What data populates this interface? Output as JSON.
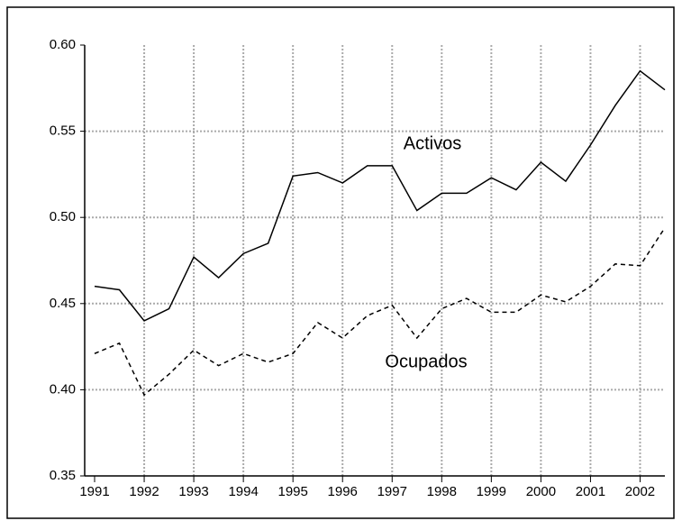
{
  "chart_data": {
    "type": "line",
    "x": [
      1991,
      1991.5,
      1992,
      1992.5,
      1993,
      1993.5,
      1994,
      1994.5,
      1995,
      1995.5,
      1996,
      1996.5,
      1997,
      1997.5,
      1998,
      1998.5,
      1999,
      1999.5,
      2000,
      2000.5,
      2001,
      2001.5,
      2002,
      2002.5
    ],
    "series": [
      {
        "name": "Activos",
        "color": "#000000",
        "dash": false,
        "values": [
          0.46,
          0.458,
          0.44,
          0.447,
          0.477,
          0.465,
          0.479,
          0.485,
          0.524,
          0.526,
          0.52,
          0.53,
          0.53,
          0.504,
          0.514,
          0.514,
          0.523,
          0.516,
          0.532,
          0.521,
          0.542,
          0.565,
          0.585,
          0.574
        ]
      },
      {
        "name": "Ocupados",
        "color": "#000000",
        "dash": true,
        "values": [
          0.421,
          0.427,
          0.397,
          0.409,
          0.423,
          0.414,
          0.421,
          0.416,
          0.421,
          0.439,
          0.43,
          0.443,
          0.449,
          0.43,
          0.447,
          0.453,
          0.445,
          0.445,
          0.455,
          0.451,
          0.46,
          0.473,
          0.472,
          0.494
        ]
      }
    ],
    "xlim": [
      1990.8,
      2002.5
    ],
    "xticks": [
      1991,
      1992,
      1993,
      1994,
      1995,
      1996,
      1997,
      1998,
      1999,
      2000,
      2001,
      2002
    ],
    "ylim": [
      0.35,
      0.6
    ],
    "yticks": [
      {
        "value": 0.35,
        "label": "0.35"
      },
      {
        "value": 0.4,
        "label": "0.40"
      },
      {
        "value": 0.45,
        "label": "0.45"
      },
      {
        "value": 0.5,
        "label": "0.50"
      },
      {
        "value": 0.55,
        "label": "0.55"
      },
      {
        "value": 0.6,
        "label": "0.60"
      }
    ],
    "grid": true
  }
}
